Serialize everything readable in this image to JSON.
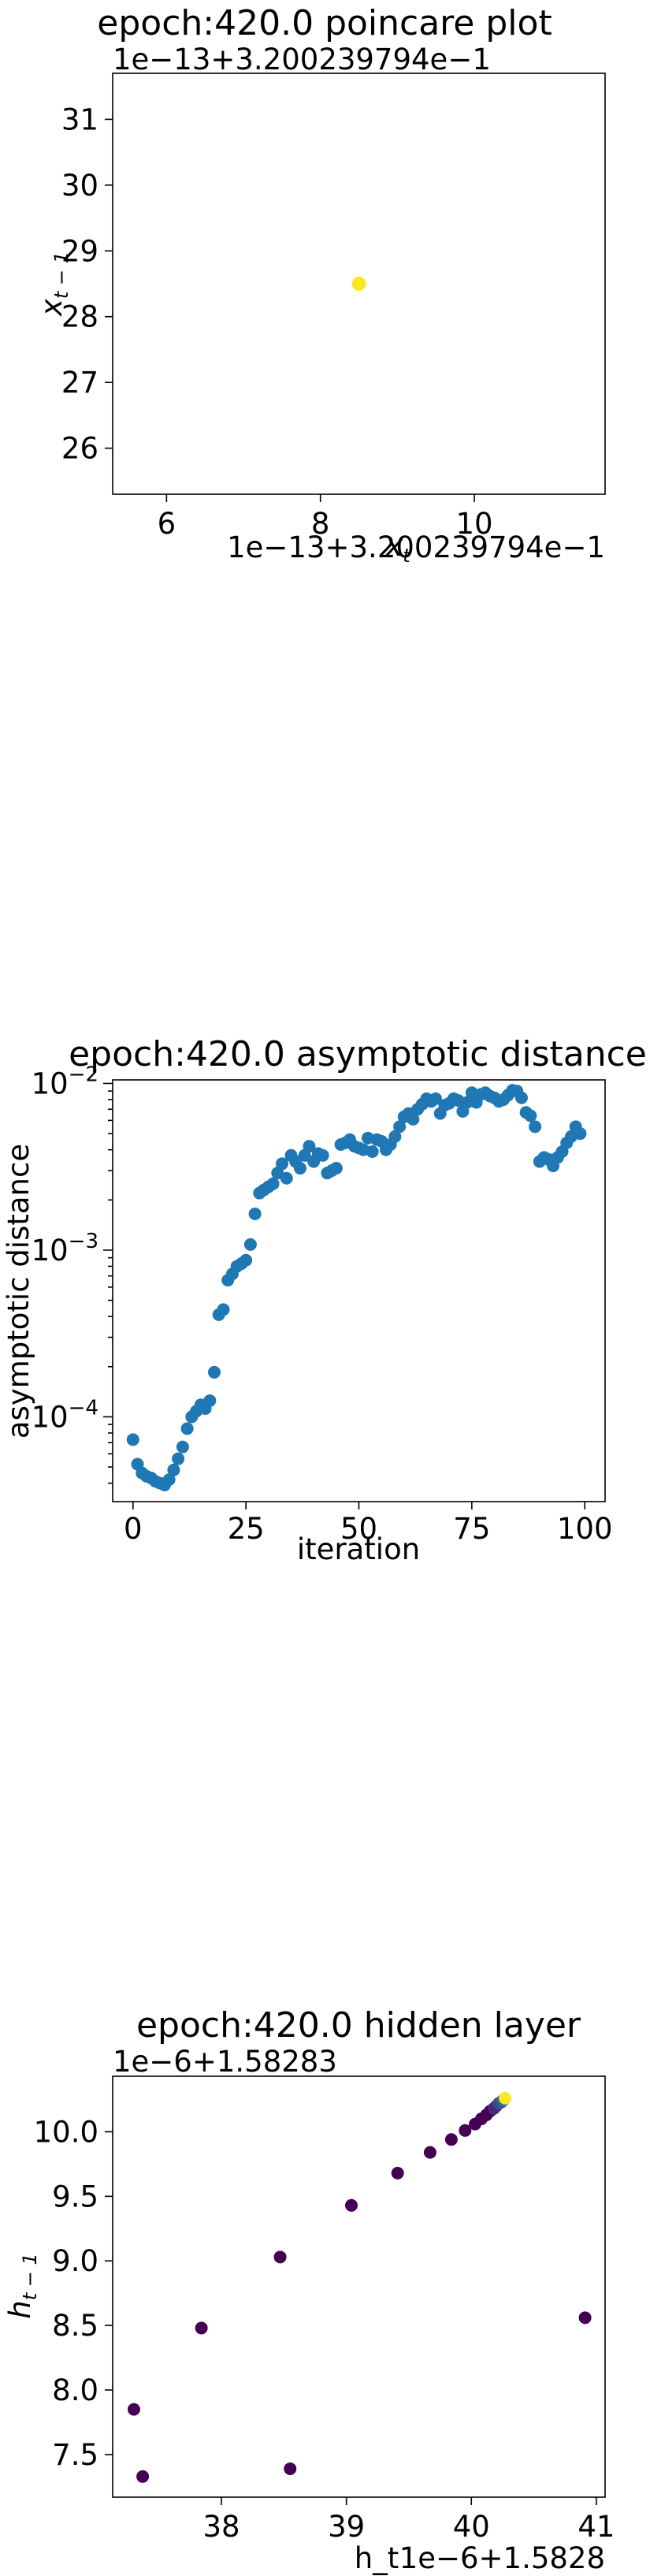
{
  "chart_data": [
    {
      "type": "scatter",
      "title": "epoch:420.0 poincare plot",
      "xlabel": "x_t",
      "ylabel": "x_{t-1}",
      "x_offset_label": "1e−13+3.200239794e−1",
      "y_offset_label": "1e−13+3.200239794e−1",
      "xlim": [
        5.3,
        11.7
      ],
      "ylim": [
        25.3,
        31.7
      ],
      "xticks": [
        6,
        8,
        10
      ],
      "yticks": [
        26,
        27,
        28,
        29,
        30,
        31
      ],
      "points": [
        {
          "x": 8.5,
          "y": 28.5
        }
      ],
      "point_color": "#fde725"
    },
    {
      "type": "scatter",
      "title": "epoch:420.0 asymptotic distance",
      "xlabel": "iteration",
      "ylabel": "asymptotic distance",
      "yscale": "log",
      "xlim": [
        -4.5,
        104.5
      ],
      "ylim": [
        3.1e-05,
        0.0105
      ],
      "xticks": [
        0,
        25,
        50,
        75,
        100
      ],
      "yticks": [
        {
          "value": 0.0001,
          "base": "10",
          "exp": "−4"
        },
        {
          "value": 0.001,
          "base": "10",
          "exp": "−3"
        },
        {
          "value": 0.01,
          "base": "10",
          "exp": "−2"
        }
      ],
      "point_color": "#1f77b4",
      "x": [
        0,
        1,
        2,
        3,
        4,
        5,
        6,
        7,
        8,
        9,
        10,
        11,
        12,
        13,
        14,
        15,
        16,
        17,
        18,
        19,
        20,
        21,
        22,
        23,
        24,
        25,
        26,
        27,
        28,
        29,
        30,
        31,
        32,
        33,
        34,
        35,
        36,
        37,
        38,
        39,
        40,
        41,
        42,
        43,
        44,
        45,
        46,
        47,
        48,
        49,
        50,
        51,
        52,
        53,
        54,
        55,
        56,
        57,
        58,
        59,
        60,
        61,
        62,
        63,
        64,
        65,
        66,
        67,
        68,
        69,
        70,
        71,
        72,
        73,
        74,
        75,
        76,
        77,
        78,
        79,
        80,
        81,
        82,
        83,
        84,
        85,
        86,
        87,
        88,
        89,
        90,
        91,
        92,
        93,
        94,
        95,
        96,
        97,
        98,
        99
      ],
      "y": [
        7.3e-05,
        5.2e-05,
        4.6e-05,
        4.4e-05,
        4.3e-05,
        4.1e-05,
        4e-05,
        3.9e-05,
        4.2e-05,
        4.8e-05,
        5.6e-05,
        6.6e-05,
        8.5e-05,
        0.0001,
        0.000108,
        0.000118,
        0.000112,
        0.000125,
        0.000185,
        0.00041,
        0.00044,
        0.00066,
        0.00072,
        0.0008,
        0.00083,
        0.00087,
        0.00108,
        0.00165,
        0.0022,
        0.0023,
        0.0024,
        0.0025,
        0.0029,
        0.0033,
        0.0027,
        0.0037,
        0.0034,
        0.0031,
        0.0037,
        0.0042,
        0.0034,
        0.0038,
        0.0037,
        0.0029,
        0.003,
        0.0031,
        0.0043,
        0.0044,
        0.0046,
        0.0042,
        0.0041,
        0.004,
        0.0047,
        0.0039,
        0.0046,
        0.0045,
        0.004,
        0.0043,
        0.0048,
        0.0055,
        0.0063,
        0.0066,
        0.0061,
        0.007,
        0.0075,
        0.0081,
        0.0078,
        0.0081,
        0.0066,
        0.0074,
        0.0076,
        0.0081,
        0.0079,
        0.0068,
        0.0077,
        0.0088,
        0.0077,
        0.0086,
        0.0088,
        0.0084,
        0.0082,
        0.0078,
        0.008,
        0.0085,
        0.0091,
        0.009,
        0.0082,
        0.0067,
        0.0064,
        0.0055,
        0.0034,
        0.0036,
        0.0035,
        0.0032,
        0.0036,
        0.0039,
        0.0044,
        0.0048,
        0.0055,
        0.005
      ]
    },
    {
      "type": "scatter",
      "title": "epoch:420.0 hidden layer",
      "xlabel": "h_t",
      "ylabel": "h_{t-1}",
      "x_offset_label": "1e−6+1.5828",
      "y_offset_label": "1e−6+1.58283",
      "xlim": [
        37.13,
        41.07
      ],
      "ylim": [
        7.17,
        10.43
      ],
      "xticks": [
        38,
        39,
        40,
        41
      ],
      "yticks": [
        "7.5",
        "8.0",
        "8.5",
        "9.0",
        "9.5",
        "10.0"
      ],
      "colormap": [
        "#440154",
        "#482878",
        "#3e4989",
        "#31688e",
        "#26828e",
        "#1f9e89",
        "#35b779",
        "#6ece58",
        "#b5de2b",
        "#fde725"
      ],
      "points": [
        {
          "x": 37.3,
          "y": 7.85
        },
        {
          "x": 37.37,
          "y": 7.33
        },
        {
          "x": 37.84,
          "y": 8.48
        },
        {
          "x": 38.47,
          "y": 9.03
        },
        {
          "x": 38.55,
          "y": 7.39
        },
        {
          "x": 39.04,
          "y": 9.43
        },
        {
          "x": 39.41,
          "y": 9.68
        },
        {
          "x": 39.67,
          "y": 9.84
        },
        {
          "x": 39.84,
          "y": 9.94
        },
        {
          "x": 39.95,
          "y": 10.01
        },
        {
          "x": 40.03,
          "y": 10.06
        },
        {
          "x": 40.08,
          "y": 10.1
        },
        {
          "x": 40.12,
          "y": 10.13
        },
        {
          "x": 40.15,
          "y": 10.16
        },
        {
          "x": 40.18,
          "y": 10.18
        },
        {
          "x": 40.2,
          "y": 10.2
        },
        {
          "x": 40.22,
          "y": 10.22
        },
        {
          "x": 40.24,
          "y": 10.23
        },
        {
          "x": 40.25,
          "y": 10.24
        },
        {
          "x": 40.26,
          "y": 10.25
        },
        {
          "x": 40.27,
          "y": 10.26
        },
        {
          "x": 40.91,
          "y": 8.56
        }
      ]
    }
  ]
}
